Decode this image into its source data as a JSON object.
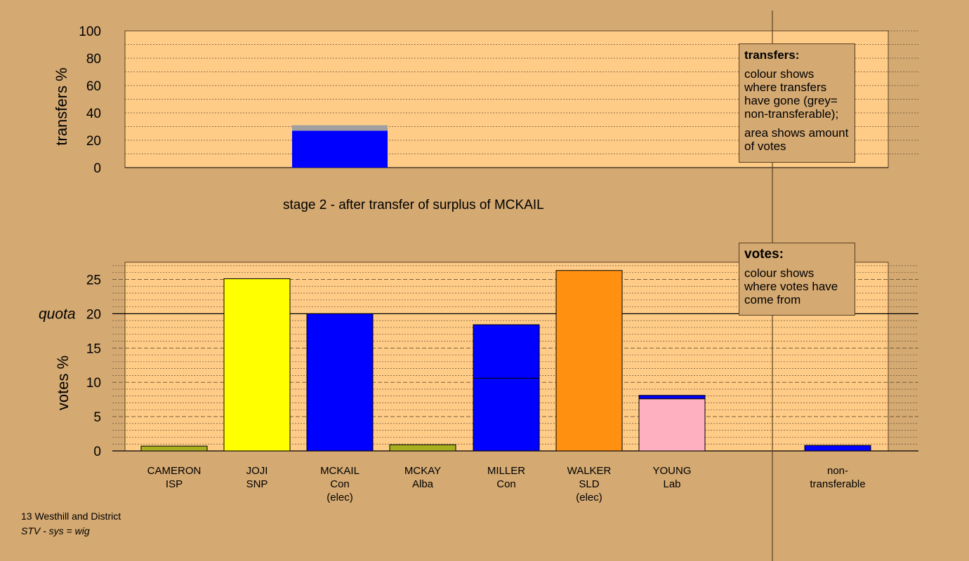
{
  "chart_data": [
    {
      "type": "bar",
      "ylabel": "transfers %",
      "ylim": [
        0,
        100
      ],
      "yticks": [
        0,
        20,
        40,
        60,
        80,
        100
      ],
      "grid": "dotted every 10",
      "categories": [
        "CAMERON ISP",
        "JOJI SNP",
        "MCKAIL Con (elec)",
        "MCKAY Alba",
        "MILLER Con",
        "WALKER SLD (elec)",
        "YOUNG Lab"
      ],
      "series": [
        {
          "values": [
            0,
            0,
            0,
            0,
            0,
            0,
            0
          ],
          "color": "#0000ff"
        },
        {
          "values": [
            0,
            0,
            0,
            0,
            0,
            0,
            0
          ],
          "color": "#a0a0a0"
        }
      ],
      "stacked_bars": [
        {
          "slot": 2,
          "segments": [
            {
              "value": 27,
              "color": "#0000ff"
            },
            {
              "value": 4,
              "color": "#a0a0a0"
            }
          ]
        }
      ],
      "caption": "stage 2 - after transfer of surplus of MCKAIL"
    },
    {
      "type": "bar",
      "ylabel": "votes %",
      "ylim": [
        0,
        27.5
      ],
      "yticks": [
        0,
        5,
        10,
        15,
        20,
        25
      ],
      "quota": 20,
      "quota_label": "quota",
      "grid": "dashed every 5, dotted every 1",
      "categories": [
        {
          "name": "CAMERON",
          "party": "ISP",
          "note": ""
        },
        {
          "name": "JOJI",
          "party": "SNP",
          "note": ""
        },
        {
          "name": "MCKAIL",
          "party": "Con",
          "note": "(elec)"
        },
        {
          "name": "MCKAY",
          "party": "Alba",
          "note": ""
        },
        {
          "name": "MILLER",
          "party": "Con",
          "note": ""
        },
        {
          "name": "WALKER",
          "party": "SLD",
          "note": "(elec)"
        },
        {
          "name": "YOUNG",
          "party": "Lab",
          "note": ""
        },
        {
          "name": "non-",
          "party": "transferable",
          "note": ""
        }
      ],
      "stacks": [
        [
          {
            "value": 0.7,
            "color": "#a8b020"
          }
        ],
        [
          {
            "value": 25.1,
            "color": "#ffff00"
          }
        ],
        [
          {
            "value": 20.0,
            "color": "#0000ff"
          }
        ],
        [
          {
            "value": 0.9,
            "color": "#a8b020"
          }
        ],
        [
          {
            "value": 10.6,
            "color": "#0000ff"
          },
          {
            "value": 7.8,
            "color": "#0000ff"
          }
        ],
        [
          {
            "value": 26.3,
            "color": "#ff9010"
          }
        ],
        [
          {
            "value": 7.6,
            "color": "#ffb0c0"
          },
          {
            "value": 0.5,
            "color": "#0000ff"
          }
        ],
        [
          {
            "value": 0.8,
            "color": "#0000ff"
          }
        ]
      ]
    }
  ],
  "legend_transfers": {
    "title": "transfers:",
    "line1": "colour shows where transfers have gone (grey= non-transferable);",
    "line2": "area shows amount of votes"
  },
  "legend_votes": {
    "title": "votes:",
    "line1": "colour shows where votes have come from"
  },
  "footer": {
    "ward": "13 Westhill and District",
    "system": "STV - sys = wig"
  },
  "colors": {
    "background": "#d4a972",
    "plot_area": "#ffcc88"
  }
}
